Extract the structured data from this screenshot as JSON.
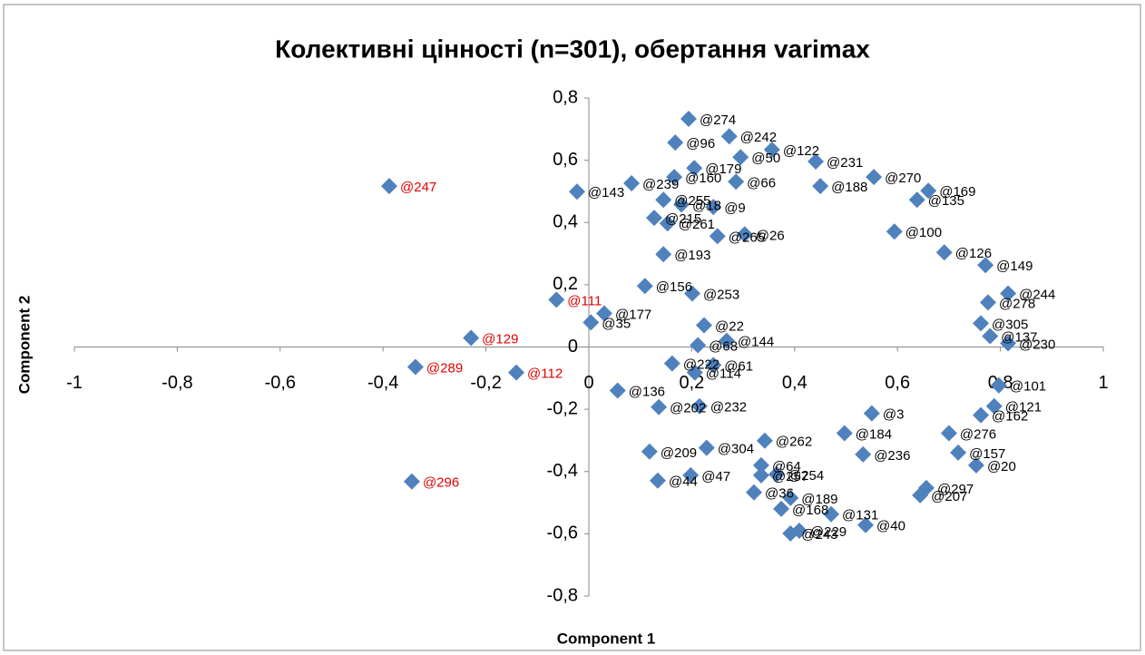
{
  "chart_data": {
    "type": "scatter",
    "title": "Колективні цінності (n=301), обертання varimax",
    "x_label": "Component 1",
    "y_label": "Component 2",
    "xlim": [
      -1,
      1
    ],
    "ylim": [
      -0.8,
      0.8
    ],
    "xticks": [
      -1,
      {
        "value": -0.8,
        "label": "-0,8"
      },
      {
        "value": -0.6,
        "label": "-0,6"
      },
      {
        "value": -0.4,
        "label": "-0,4"
      },
      {
        "value": -0.2,
        "label": "-0,2"
      },
      0,
      {
        "value": 0.2,
        "label": "0,2"
      },
      {
        "value": 0.4,
        "label": "0,4"
      },
      {
        "value": 0.6,
        "label": "0,6"
      },
      {
        "value": 0.8,
        "label": "0,8"
      },
      1
    ],
    "yticks": [
      {
        "value": -0.8,
        "label": "-0,8"
      },
      {
        "value": -0.6,
        "label": "-0,6"
      },
      {
        "value": -0.4,
        "label": "-0,4"
      },
      {
        "value": -0.2,
        "label": "-0,2"
      },
      0,
      {
        "value": 0.2,
        "label": "0,2"
      },
      {
        "value": 0.4,
        "label": "0,4"
      },
      {
        "value": 0.6,
        "label": "0,6"
      },
      {
        "value": 0.8,
        "label": "0,8"
      }
    ],
    "series": [
      {
        "color": "#4f81bd",
        "label_color": "#e00000",
        "labels": [
          "@247",
          "@111",
          "@129",
          "@289",
          "@112",
          "@296"
        ],
        "x": [
          -0.388,
          -0.063,
          -0.229,
          -0.337,
          -0.141,
          -0.344
        ],
        "values": [
          0.517,
          0.152,
          0.029,
          -0.064,
          -0.082,
          -0.432
        ]
      },
      {
        "color": "#4f81bd",
        "label_color": "#000000",
        "labels": [
          "@274",
          "@96",
          "@242",
          "@50",
          "@122",
          "@231",
          "@270",
          "@169",
          "@188",
          "@160",
          "@179",
          "@66",
          "@239",
          "@143",
          "@255",
          "@18",
          "@9",
          "@215",
          "@261",
          "@265",
          "@26",
          "@135",
          "@100",
          "@126",
          "@149",
          "@193",
          "@156",
          "@253",
          "@177",
          "@35",
          "@244",
          "@278",
          "@137",
          "@230",
          "@305",
          "@22",
          "@68",
          "@144",
          "@222",
          "@114",
          "@61",
          "@136",
          "@202",
          "@232",
          "@101",
          "@121",
          "@162",
          "@276",
          "@157",
          "@20",
          "@297",
          "@207",
          "@209",
          "@304",
          "@47",
          "@44",
          "@64",
          "@257",
          "@254",
          "@36",
          "@189",
          "@168",
          "@131",
          "@40",
          "@229",
          "@243",
          "@262",
          "@236",
          "@3",
          "@184"
        ],
        "x": [
          0.194,
          0.168,
          0.273,
          0.295,
          0.356,
          0.441,
          0.554,
          0.66,
          0.45,
          0.166,
          0.205,
          0.286,
          0.083,
          -0.023,
          0.145,
          0.18,
          0.242,
          0.127,
          0.153,
          0.25,
          0.303,
          0.638,
          0.594,
          0.691,
          0.771,
          0.145,
          0.109,
          0.201,
          0.03,
          0.004,
          0.815,
          0.776,
          0.78,
          0.815,
          0.762,
          0.224,
          0.212,
          0.268,
          0.162,
          0.206,
          0.242,
          0.056,
          0.136,
          0.215,
          0.797,
          0.788,
          0.762,
          0.7,
          0.718,
          0.753,
          0.656,
          0.644,
          0.118,
          0.229,
          0.198,
          0.134,
          0.335,
          0.335,
          0.365,
          0.321,
          0.392,
          0.374,
          0.471,
          0.538,
          0.409,
          0.392,
          0.342,
          0.533,
          0.55,
          0.497
        ],
        "values": [
          0.733,
          0.657,
          0.677,
          0.61,
          0.634,
          0.596,
          0.546,
          0.502,
          0.517,
          0.546,
          0.575,
          0.531,
          0.526,
          0.499,
          0.473,
          0.458,
          0.45,
          0.415,
          0.397,
          0.356,
          0.362,
          0.473,
          0.371,
          0.304,
          0.263,
          0.298,
          0.196,
          0.172,
          0.108,
          0.079,
          0.172,
          0.143,
          0.035,
          0.012,
          0.076,
          0.07,
          0.006,
          0.02,
          -0.053,
          -0.082,
          -0.058,
          -0.14,
          -0.193,
          -0.19,
          -0.123,
          -0.19,
          -0.219,
          -0.277,
          -0.339,
          -0.38,
          -0.453,
          -0.476,
          -0.336,
          -0.324,
          -0.412,
          -0.429,
          -0.38,
          -0.412,
          -0.409,
          -0.467,
          -0.485,
          -0.52,
          -0.537,
          -0.572,
          -0.59,
          -0.599,
          -0.301,
          -0.345,
          -0.213,
          -0.277
        ]
      }
    ]
  }
}
